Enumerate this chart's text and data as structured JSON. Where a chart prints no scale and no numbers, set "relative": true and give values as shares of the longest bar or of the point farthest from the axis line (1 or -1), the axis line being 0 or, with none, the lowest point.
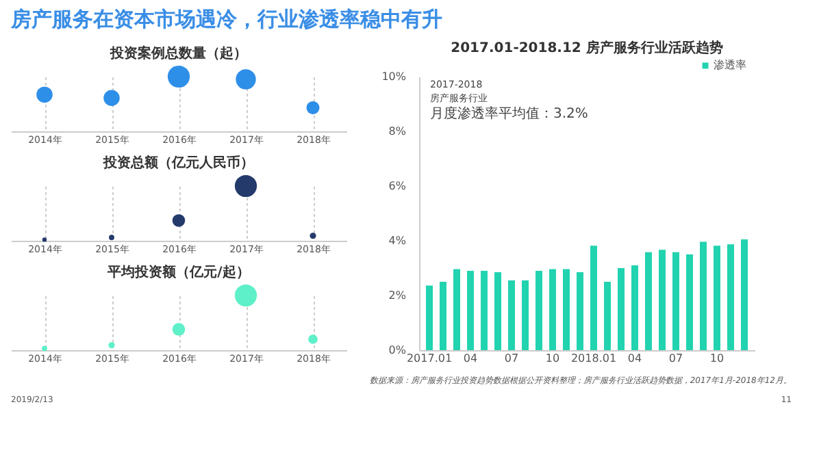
{
  "chart_data": [
    {
      "type": "bubble",
      "title": "投资案例总数量（起）",
      "annotations": [
        "房产服务在资本市场遇冷，行业渗透率稳中有升"
      ],
      "categories": [
        "2014年",
        "2015年",
        "2016年",
        "2017年",
        "2018年"
      ],
      "relative": true,
      "values": [
        0.67,
        0.61,
        1,
        0.95,
        0.43
      ],
      "sizes": [
        0.53,
        0.53,
        1,
        0.83,
        0.35
      ],
      "color": "#2e8fe8",
      "grid": "x"
    },
    {
      "type": "bubble",
      "title": "投资总额（亿元人民币）",
      "categories": [
        "2014年",
        "2015年",
        "2016年",
        "2017年",
        "2018年"
      ],
      "relative": true,
      "values": [
        0.02,
        0.06,
        0.37,
        1,
        0.09
      ],
      "sizes": [
        0.04,
        0.06,
        0.33,
        1,
        0.08
      ],
      "color": "#233a6b",
      "grid": "x"
    },
    {
      "type": "bubble",
      "title": "平均投资额（亿元/起）",
      "categories": [
        "2014年",
        "2015年",
        "2016年",
        "2017年",
        "2018年"
      ],
      "relative": true,
      "values": [
        0.03,
        0.09,
        0.38,
        1,
        0.2
      ],
      "sizes": [
        0.06,
        0.08,
        0.33,
        1,
        0.18
      ],
      "color": "#5ef0c8",
      "grid": "x"
    },
    {
      "type": "bar",
      "title": "2017.01-2018.12  房产服务行业活跃趋势",
      "categories": [
        "2017.01",
        null,
        null,
        "04",
        null,
        null,
        "07",
        null,
        null,
        "10",
        null,
        null,
        "2018.01",
        null,
        null,
        "04",
        null,
        null,
        "07",
        null,
        null,
        "10",
        null,
        null
      ],
      "series": [
        {
          "name": "渗透率",
          "color": "#22d3b0",
          "values": [
            2.36,
            2.5,
            2.96,
            2.9,
            2.9,
            2.85,
            2.55,
            2.55,
            2.9,
            2.96,
            2.96,
            2.85,
            3.82,
            2.5,
            3.0,
            3.1,
            3.58,
            3.67,
            3.58,
            3.5,
            3.96,
            3.82,
            3.87,
            4.05
          ]
        }
      ],
      "ylim": [
        0,
        10
      ],
      "yticks": [
        {
          "value": 0,
          "label": "0%"
        },
        {
          "value": 2,
          "label": "2%"
        },
        {
          "value": 4,
          "label": "4%"
        },
        {
          "value": 6,
          "label": "6%"
        },
        {
          "value": 8,
          "label": "8%"
        },
        {
          "value": 10,
          "label": "10%"
        }
      ],
      "legend": "top right",
      "grid": false,
      "annotations": [
        "2017-2018",
        "房产服务行业",
        "月度渗透率平均值：3.2%",
        "数据来源：房产服务行业投资趋势数据根据公开资料整理；房产服务行业活跃趋势数据，2017年1月-2018年12月。",
        "2019/2/13",
        "11"
      ]
    }
  ]
}
